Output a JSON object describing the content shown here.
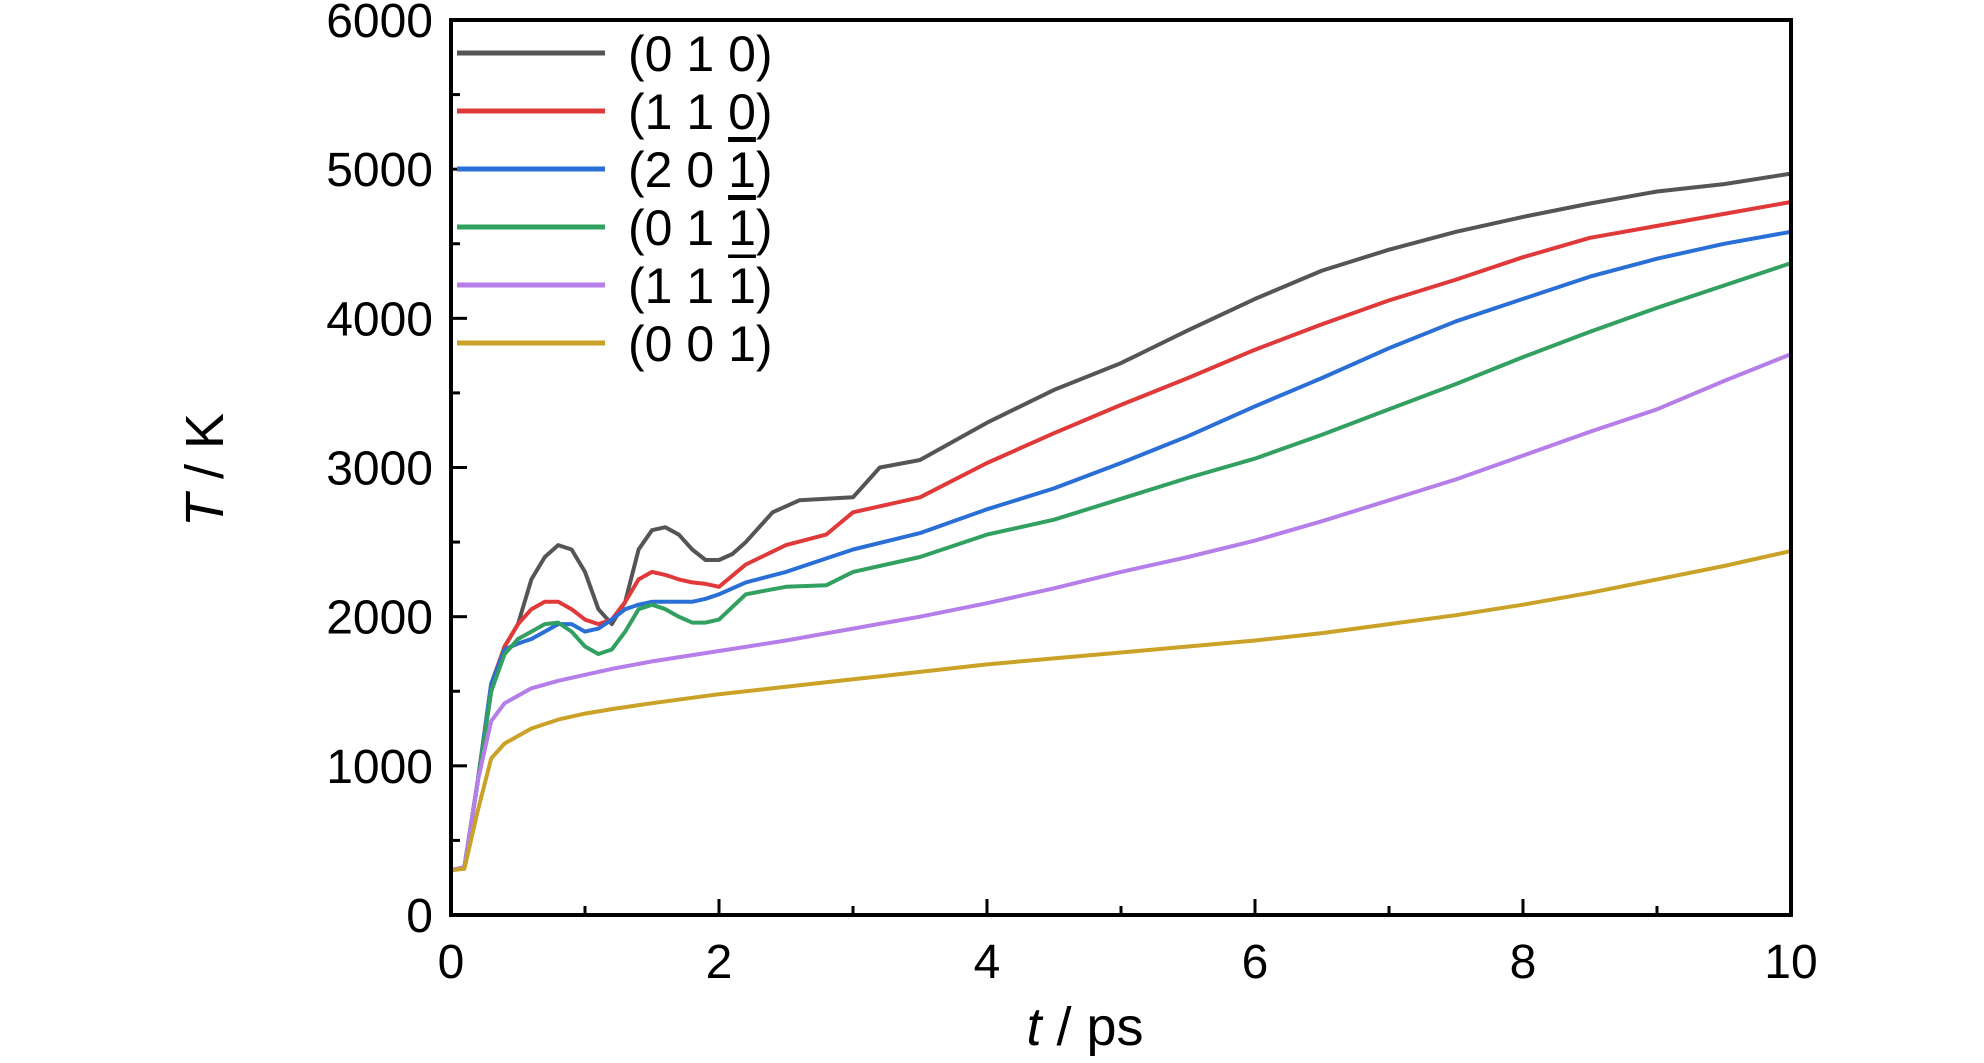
{
  "chart_data": {
    "type": "line",
    "xlabel": "t / ps",
    "xlabel_var": "t",
    "xlabel_unit": " / ps",
    "ylabel": "T / K",
    "ylabel_var": "T",
    "ylabel_unit": " / K",
    "xlim": [
      0,
      10
    ],
    "ylim": [
      0,
      6000
    ],
    "xticks": [
      0,
      2,
      4,
      6,
      8,
      10
    ],
    "yticks": [
      0,
      1000,
      2000,
      3000,
      4000,
      5000,
      6000
    ],
    "xtick_labels": [
      "0",
      "2",
      "4",
      "6",
      "8",
      "10"
    ],
    "ytick_labels": [
      "0",
      "1000",
      "2000",
      "3000",
      "4000",
      "5000",
      "6000"
    ],
    "grid": false,
    "legend_position": "top-left",
    "series": [
      {
        "name": "(0 1 0)",
        "color": "#555555",
        "x": [
          0,
          0.1,
          0.2,
          0.3,
          0.4,
          0.5,
          0.6,
          0.7,
          0.8,
          0.9,
          1.0,
          1.1,
          1.2,
          1.3,
          1.4,
          1.5,
          1.6,
          1.7,
          1.8,
          1.9,
          2.0,
          2.1,
          2.2,
          2.4,
          2.6,
          2.8,
          3.0,
          3.2,
          3.5,
          4.0,
          4.5,
          5.0,
          5.5,
          6.0,
          6.5,
          7.0,
          7.5,
          8.0,
          8.5,
          9.0,
          9.5,
          10.0
        ],
        "y": [
          300,
          320,
          900,
          1500,
          1800,
          1950,
          2250,
          2400,
          2480,
          2450,
          2300,
          2050,
          1950,
          2100,
          2450,
          2580,
          2600,
          2550,
          2450,
          2380,
          2380,
          2420,
          2500,
          2700,
          2780,
          2790,
          2800,
          3000,
          3050,
          3300,
          3520,
          3700,
          3920,
          4130,
          4320,
          4460,
          4580,
          4680,
          4770,
          4850,
          4900,
          4970
        ]
      },
      {
        "name": "(1 1 0)",
        "color": "#e0393a",
        "x": [
          0,
          0.1,
          0.2,
          0.3,
          0.4,
          0.5,
          0.6,
          0.7,
          0.8,
          0.9,
          1.0,
          1.1,
          1.2,
          1.3,
          1.4,
          1.5,
          1.6,
          1.7,
          1.8,
          1.9,
          2.0,
          2.2,
          2.5,
          2.8,
          3.0,
          3.5,
          4.0,
          4.5,
          5.0,
          5.5,
          6.0,
          6.5,
          7.0,
          7.5,
          8.0,
          8.5,
          9.0,
          9.5,
          10.0
        ],
        "y": [
          300,
          320,
          900,
          1550,
          1800,
          1950,
          2050,
          2100,
          2100,
          2050,
          1980,
          1950,
          1980,
          2100,
          2250,
          2300,
          2280,
          2250,
          2230,
          2220,
          2200,
          2350,
          2480,
          2550,
          2700,
          2800,
          3030,
          3230,
          3420,
          3600,
          3790,
          3960,
          4120,
          4260,
          4410,
          4540,
          4620,
          4700,
          4780
        ]
      },
      {
        "name": "(2 0 1)",
        "color": "#2a6fd6",
        "overline_index": 2,
        "x": [
          0,
          0.1,
          0.2,
          0.3,
          0.4,
          0.5,
          0.6,
          0.7,
          0.8,
          0.9,
          1.0,
          1.1,
          1.2,
          1.3,
          1.4,
          1.5,
          1.6,
          1.7,
          1.8,
          1.9,
          2.0,
          2.2,
          2.5,
          3.0,
          3.5,
          4.0,
          4.5,
          5.0,
          5.5,
          6.0,
          6.5,
          7.0,
          7.5,
          8.0,
          8.5,
          9.0,
          9.5,
          10.0
        ],
        "y": [
          300,
          320,
          900,
          1550,
          1780,
          1820,
          1850,
          1900,
          1950,
          1950,
          1900,
          1920,
          1980,
          2050,
          2080,
          2100,
          2100,
          2100,
          2100,
          2120,
          2150,
          2230,
          2300,
          2450,
          2560,
          2720,
          2860,
          3030,
          3210,
          3410,
          3600,
          3800,
          3980,
          4130,
          4280,
          4400,
          4500,
          4580
        ]
      },
      {
        "name": "(0 1 1)",
        "color": "#32a060",
        "overline_index": 2,
        "x": [
          0,
          0.1,
          0.2,
          0.3,
          0.4,
          0.5,
          0.6,
          0.7,
          0.8,
          0.9,
          1.0,
          1.1,
          1.2,
          1.3,
          1.4,
          1.5,
          1.6,
          1.7,
          1.8,
          1.9,
          2.0,
          2.2,
          2.5,
          2.8,
          3.0,
          3.5,
          4.0,
          4.5,
          5.0,
          5.5,
          6.0,
          6.5,
          7.0,
          7.5,
          8.0,
          8.5,
          9.0,
          9.5,
          10.0
        ],
        "y": [
          300,
          320,
          900,
          1500,
          1750,
          1850,
          1900,
          1950,
          1960,
          1900,
          1800,
          1750,
          1780,
          1900,
          2050,
          2080,
          2050,
          2000,
          1960,
          1960,
          1980,
          2150,
          2200,
          2210,
          2300,
          2400,
          2550,
          2650,
          2790,
          2930,
          3060,
          3220,
          3390,
          3560,
          3740,
          3910,
          4070,
          4220,
          4370
        ]
      },
      {
        "name": "(1 1 1)",
        "color": "#b57ee8",
        "overline_index": 2,
        "x": [
          0,
          0.1,
          0.2,
          0.3,
          0.4,
          0.6,
          0.8,
          1.0,
          1.2,
          1.5,
          2.0,
          2.5,
          3.0,
          3.5,
          4.0,
          4.5,
          5.0,
          5.5,
          6.0,
          6.5,
          7.0,
          7.5,
          8.0,
          8.5,
          9.0,
          9.5,
          10.0
        ],
        "y": [
          300,
          320,
          900,
          1300,
          1420,
          1520,
          1570,
          1610,
          1650,
          1700,
          1770,
          1840,
          1920,
          2000,
          2090,
          2190,
          2300,
          2400,
          2510,
          2640,
          2780,
          2920,
          3080,
          3240,
          3390,
          3580,
          3760
        ]
      },
      {
        "name": "(0 0 1)",
        "color": "#c9a227",
        "x": [
          0,
          0.1,
          0.2,
          0.3,
          0.4,
          0.6,
          0.8,
          1.0,
          1.2,
          1.5,
          2.0,
          2.5,
          3.0,
          3.5,
          4.0,
          4.5,
          5.0,
          5.5,
          6.0,
          6.5,
          7.0,
          7.5,
          8.0,
          8.5,
          9.0,
          9.5,
          10.0
        ],
        "y": [
          300,
          310,
          700,
          1050,
          1150,
          1250,
          1310,
          1350,
          1380,
          1420,
          1480,
          1530,
          1580,
          1630,
          1680,
          1720,
          1760,
          1800,
          1840,
          1890,
          1950,
          2010,
          2080,
          2160,
          2250,
          2340,
          2440
        ]
      }
    ]
  }
}
